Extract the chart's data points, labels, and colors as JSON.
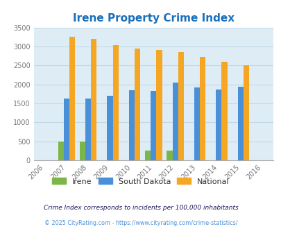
{
  "title": "Irene Property Crime Index",
  "years": [
    2006,
    2007,
    2008,
    2009,
    2010,
    2011,
    2012,
    2013,
    2014,
    2015,
    2016
  ],
  "bar_years": [
    2007,
    2008,
    2009,
    2010,
    2011,
    2012,
    2013,
    2014,
    2015
  ],
  "irene": [
    500,
    500,
    0,
    0,
    250,
    250,
    0,
    0,
    0
  ],
  "south_dakota": [
    1630,
    1630,
    1700,
    1840,
    1820,
    2050,
    1920,
    1870,
    1940
  ],
  "national": [
    3250,
    3200,
    3040,
    2950,
    2900,
    2850,
    2720,
    2590,
    2500
  ],
  "irene_color": "#7ab648",
  "sd_color": "#4a90d9",
  "national_color": "#f5a623",
  "bg_color": "#deedf5",
  "title_color": "#1a6fba",
  "ylim": [
    0,
    3500
  ],
  "yticks": [
    0,
    500,
    1000,
    1500,
    2000,
    2500,
    3000,
    3500
  ],
  "footnote1": "Crime Index corresponds to incidents per 100,000 inhabitants",
  "footnote2": "© 2025 CityRating.com - https://www.cityrating.com/crime-statistics/",
  "legend_labels": [
    "Irene",
    "South Dakota",
    "National"
  ],
  "footnote1_color": "#1a1a5f",
  "footnote2_color": "#4a90d9"
}
